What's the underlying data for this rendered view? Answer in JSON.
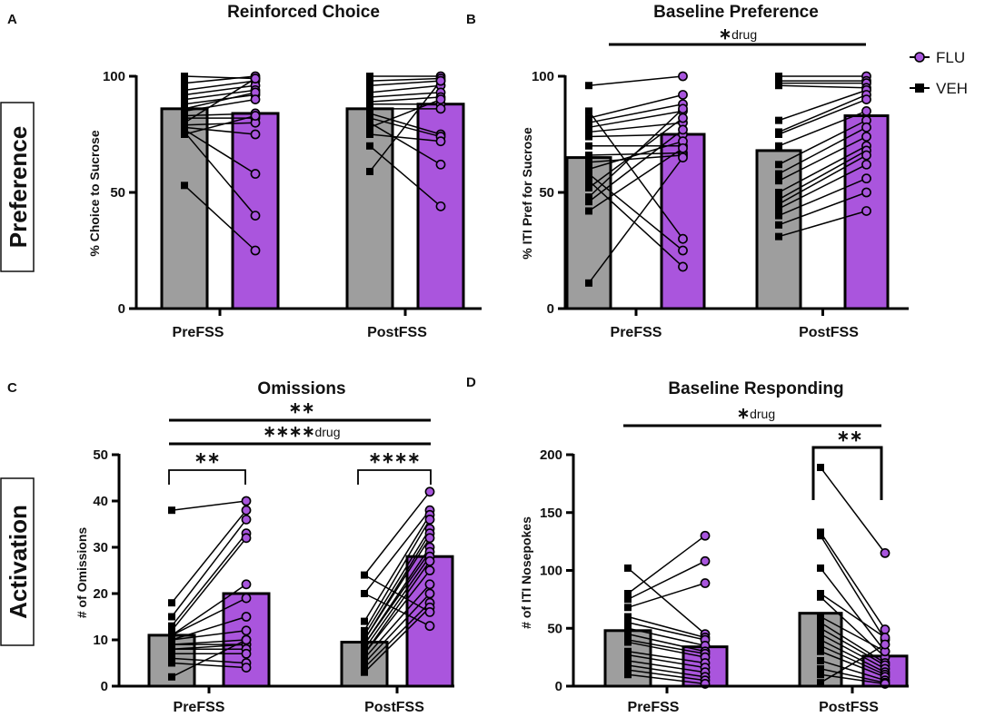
{
  "legend": {
    "entries": [
      {
        "name": "FLU",
        "color": "#A855DD",
        "marker": "circle"
      },
      {
        "name": "VEH",
        "color": "#000000",
        "marker": "square"
      }
    ]
  },
  "row_labels": [
    "Preference",
    "Activation"
  ],
  "colors": {
    "veh_bar": "#9E9E9E",
    "flu_bar": "#AA55DD",
    "line": "#000000"
  },
  "chart_data": [
    {
      "panel": "A",
      "type": "bar",
      "title": "Reinforced Choice",
      "ylabel": "% Choice to Sucrose",
      "ylim": [
        0,
        100
      ],
      "yticks": [
        0,
        50,
        100
      ],
      "categories": [
        "PreFSS",
        "PostFSS"
      ],
      "series": [
        {
          "name": "VEH",
          "values": [
            86,
            86
          ]
        },
        {
          "name": "FLU",
          "values": [
            84,
            88
          ]
        }
      ],
      "pairs": [
        {
          "category": "PreFSS",
          "veh": [
            100,
            97,
            94,
            92,
            90,
            88,
            86,
            85,
            83,
            82,
            80,
            79,
            78,
            77,
            76,
            75,
            53
          ],
          "flu": [
            99,
            100,
            98,
            96,
            94,
            92,
            93,
            90,
            84,
            82,
            99,
            80,
            75,
            58,
            40,
            83,
            25
          ]
        },
        {
          "category": "PostFSS",
          "veh": [
            100,
            98,
            96,
            93,
            91,
            89,
            88,
            86,
            84,
            82,
            80,
            78,
            75,
            70,
            59
          ],
          "flu": [
            100,
            99,
            98,
            96,
            93,
            91,
            88,
            86,
            75,
            74,
            62,
            90,
            72,
            44,
            98
          ]
        }
      ],
      "significance": []
    },
    {
      "panel": "B",
      "type": "bar",
      "title": "Baseline Preference",
      "ylabel": "% ITI Pref for Sucrose",
      "ylim": [
        0,
        100
      ],
      "yticks": [
        0,
        50,
        100
      ],
      "categories": [
        "PreFSS",
        "PostFSS"
      ],
      "series": [
        {
          "name": "VEH",
          "values": [
            65,
            68
          ]
        },
        {
          "name": "FLU",
          "values": [
            75,
            83
          ]
        }
      ],
      "pairs": [
        {
          "category": "PreFSS",
          "veh": [
            96,
            85,
            82,
            80,
            78,
            76,
            74,
            70,
            66,
            63,
            60,
            58,
            55,
            52,
            48,
            46,
            42,
            11
          ],
          "flu": [
            100,
            30,
            92,
            88,
            85,
            80,
            75,
            70,
            67,
            66,
            72,
            25,
            18,
            82,
            86,
            77,
            69,
            65
          ]
        },
        {
          "category": "PostFSS",
          "veh": [
            100,
            98,
            97,
            96,
            81,
            76,
            75,
            70,
            62,
            58,
            55,
            50,
            47,
            45,
            43,
            40,
            36,
            31
          ],
          "flu": [
            100,
            98,
            97,
            95,
            94,
            92,
            90,
            85,
            81,
            78,
            74,
            70,
            68,
            66,
            62,
            56,
            50,
            42
          ]
        }
      ],
      "significance": [
        {
          "stars": "*",
          "text": "drug",
          "span": "all"
        }
      ]
    },
    {
      "panel": "C",
      "type": "bar",
      "title": "Omissions",
      "ylabel": "# of Omissions",
      "ylim": [
        0,
        50
      ],
      "yticks": [
        0,
        10,
        20,
        30,
        40,
        50
      ],
      "categories": [
        "PreFSS",
        "PostFSS"
      ],
      "series": [
        {
          "name": "VEH",
          "values": [
            11,
            9.5
          ]
        },
        {
          "name": "FLU",
          "values": [
            20,
            28
          ]
        }
      ],
      "pairs": [
        {
          "category": "PreFSS",
          "veh": [
            38,
            18,
            15,
            13,
            12,
            11,
            11,
            10,
            10,
            9,
            9,
            8,
            8,
            7,
            6,
            5,
            2
          ],
          "flu": [
            40,
            38,
            36,
            33,
            32,
            22,
            19,
            15,
            12,
            10,
            9,
            9,
            8,
            7,
            5,
            4,
            10
          ]
        },
        {
          "category": "PostFSS",
          "veh": [
            24,
            20,
            14,
            12,
            11,
            10,
            10,
            9,
            9,
            8,
            7,
            7,
            6,
            5,
            4,
            3
          ],
          "flu": [
            42,
            38,
            37,
            36,
            34,
            33,
            32,
            30,
            29,
            28,
            27,
            25,
            22,
            20,
            18,
            17,
            16,
            13
          ]
        }
      ],
      "significance": [
        {
          "stars": "**",
          "text": "",
          "span": "all"
        },
        {
          "stars": "****",
          "text": "drug",
          "span": "all"
        },
        {
          "stars": "**",
          "text": "",
          "span": "PreFSS"
        },
        {
          "stars": "****",
          "text": "",
          "span": "PostFSS"
        }
      ]
    },
    {
      "panel": "D",
      "type": "bar",
      "title": "Baseline Responding",
      "ylabel": "# of ITI Nosepokes",
      "ylim": [
        0,
        200
      ],
      "yticks": [
        0,
        50,
        100,
        150,
        200
      ],
      "categories": [
        "PreFSS",
        "PostFSS"
      ],
      "series": [
        {
          "name": "VEH",
          "values": [
            48,
            63
          ]
        },
        {
          "name": "FLU",
          "values": [
            34,
            26
          ]
        }
      ],
      "pairs": [
        {
          "category": "PreFSS",
          "veh": [
            102,
            80,
            75,
            68,
            60,
            55,
            50,
            45,
            40,
            38,
            30,
            27,
            22,
            18,
            14,
            10
          ],
          "flu": [
            45,
            130,
            108,
            89,
            42,
            40,
            35,
            30,
            28,
            25,
            20,
            16,
            12,
            8,
            5,
            2
          ]
        },
        {
          "category": "PostFSS",
          "veh": [
            189,
            133,
            130,
            102,
            80,
            77,
            60,
            55,
            50,
            45,
            40,
            35,
            30,
            22,
            15,
            10,
            3
          ],
          "flu": [
            115,
            49,
            40,
            30,
            42,
            25,
            30,
            20,
            18,
            15,
            12,
            10,
            8,
            5,
            3,
            2,
            36
          ]
        }
      ],
      "significance": [
        {
          "stars": "*",
          "text": "drug",
          "span": "all"
        },
        {
          "stars": "**",
          "text": "",
          "span": "PostFSS"
        }
      ]
    }
  ]
}
